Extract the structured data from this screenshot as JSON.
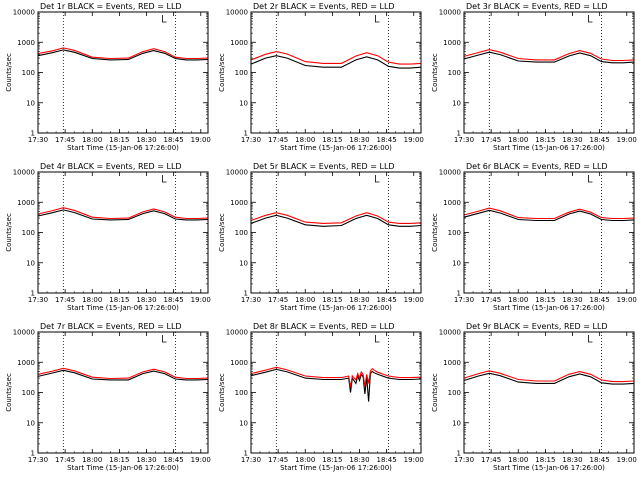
{
  "chart_data": [
    {
      "type": "line",
      "title": "Det 1r BLACK = Events, RED = LLD",
      "xlabel": "Start Time (15-Jan-06 17:26:00)",
      "ylabel": "Counts/sec",
      "x_ticks": [
        "17:30",
        "17:45",
        "18:00",
        "18:15",
        "18:30",
        "18:45",
        "19:00"
      ],
      "x_range_min": [
        1650,
        1744
      ],
      "y_ticks": [
        "1",
        "10",
        "100",
        "1000",
        "10000"
      ],
      "y_range": [
        1,
        10000
      ],
      "y_scale": "log",
      "vlines_min": [
        1664,
        1726
      ],
      "colors": {
        "events": "#000000",
        "lld": "#ff0000"
      },
      "series": [
        {
          "name": "BLACK = Events",
          "color": "#000000",
          "x_min": [
            1650,
            1658,
            1664,
            1670,
            1680,
            1690,
            1700,
            1708,
            1714,
            1720,
            1726,
            1732,
            1738,
            1744
          ],
          "y": [
            360,
            450,
            560,
            470,
            290,
            260,
            270,
            430,
            530,
            430,
            290,
            260,
            260,
            270
          ]
        },
        {
          "name": "RED = LLD",
          "color": "#ff0000",
          "x_min": [
            1650,
            1658,
            1664,
            1670,
            1680,
            1690,
            1700,
            1708,
            1714,
            1720,
            1726,
            1732,
            1738,
            1744
          ],
          "y": [
            420,
            520,
            650,
            540,
            320,
            290,
            300,
            490,
            610,
            490,
            320,
            290,
            290,
            300
          ]
        }
      ]
    },
    {
      "type": "line",
      "title": "Det 2r BLACK = Events, RED = LLD",
      "xlabel": "Start Time (15-Jan-06 17:26:00)",
      "ylabel": "Counts/sec",
      "x_ticks": [
        "17:30",
        "17:45",
        "18:00",
        "18:15",
        "18:30",
        "18:45",
        "19:00"
      ],
      "x_range_min": [
        1650,
        1744
      ],
      "y_ticks": [
        "1",
        "10",
        "100",
        "1000",
        "10000"
      ],
      "y_range": [
        1,
        10000
      ],
      "y_scale": "log",
      "vlines_min": [
        1664,
        1726
      ],
      "colors": {
        "events": "#000000",
        "lld": "#ff0000"
      },
      "series": [
        {
          "name": "BLACK = Events",
          "color": "#000000",
          "x_min": [
            1650,
            1658,
            1664,
            1670,
            1680,
            1690,
            1700,
            1708,
            1714,
            1720,
            1726,
            1732,
            1738,
            1744
          ],
          "y": [
            190,
            300,
            360,
            300,
            170,
            150,
            150,
            260,
            330,
            260,
            160,
            140,
            140,
            150
          ]
        },
        {
          "name": "RED = LLD",
          "color": "#ff0000",
          "x_min": [
            1650,
            1658,
            1664,
            1670,
            1680,
            1690,
            1700,
            1708,
            1714,
            1720,
            1726,
            1732,
            1738,
            1744
          ],
          "y": [
            260,
            400,
            490,
            410,
            230,
            200,
            200,
            350,
            450,
            360,
            220,
            190,
            190,
            200
          ]
        }
      ]
    },
    {
      "type": "line",
      "title": "Det 3r BLACK = Events, RED = LLD",
      "xlabel": "Start Time (15-Jan-06 17:26:00)",
      "ylabel": "Counts/sec",
      "x_ticks": [
        "17:30",
        "17:45",
        "18:00",
        "18:15",
        "18:30",
        "18:45",
        "19:00"
      ],
      "x_range_min": [
        1650,
        1744
      ],
      "y_ticks": [
        "1",
        "10",
        "100",
        "1000",
        "10000"
      ],
      "y_range": [
        1,
        10000
      ],
      "y_scale": "log",
      "vlines_min": [
        1664,
        1726
      ],
      "colors": {
        "events": "#000000",
        "lld": "#ff0000"
      },
      "series": [
        {
          "name": "BLACK = Events",
          "color": "#000000",
          "x_min": [
            1650,
            1658,
            1664,
            1670,
            1680,
            1690,
            1700,
            1708,
            1714,
            1720,
            1726,
            1732,
            1738,
            1744
          ],
          "y": [
            280,
            380,
            470,
            390,
            240,
            220,
            220,
            350,
            440,
            360,
            230,
            210,
            210,
            220
          ]
        },
        {
          "name": "RED = LLD",
          "color": "#ff0000",
          "x_min": [
            1650,
            1658,
            1664,
            1670,
            1680,
            1690,
            1700,
            1708,
            1714,
            1720,
            1726,
            1732,
            1738,
            1744
          ],
          "y": [
            340,
            460,
            570,
            470,
            290,
            260,
            260,
            420,
            530,
            430,
            280,
            250,
            250,
            260
          ]
        }
      ]
    },
    {
      "type": "line",
      "title": "Det 4r BLACK = Events, RED = LLD",
      "xlabel": "Start Time (15-Jan-06 17:26:00)",
      "ylabel": "Counts/sec",
      "x_ticks": [
        "17:30",
        "17:45",
        "18:00",
        "18:15",
        "18:30",
        "18:45",
        "19:00"
      ],
      "x_range_min": [
        1650,
        1744
      ],
      "y_ticks": [
        "1",
        "10",
        "100",
        "1000",
        "10000"
      ],
      "y_range": [
        1,
        10000
      ],
      "y_scale": "log",
      "vlines_min": [
        1664,
        1726
      ],
      "colors": {
        "events": "#000000",
        "lld": "#ff0000"
      },
      "series": [
        {
          "name": "BLACK = Events",
          "color": "#000000",
          "x_min": [
            1650,
            1658,
            1664,
            1670,
            1680,
            1690,
            1700,
            1708,
            1714,
            1720,
            1726,
            1732,
            1738,
            1744
          ],
          "y": [
            350,
            450,
            560,
            460,
            280,
            260,
            270,
            420,
            520,
            420,
            280,
            260,
            260,
            270
          ]
        },
        {
          "name": "RED = LLD",
          "color": "#ff0000",
          "x_min": [
            1650,
            1658,
            1664,
            1670,
            1680,
            1690,
            1700,
            1708,
            1714,
            1720,
            1726,
            1732,
            1738,
            1744
          ],
          "y": [
            410,
            530,
            660,
            540,
            320,
            290,
            300,
            480,
            600,
            480,
            320,
            290,
            290,
            300
          ]
        }
      ]
    },
    {
      "type": "line",
      "title": "Det 5r BLACK = Events, RED = LLD",
      "xlabel": "Start Time (15-Jan-06 17:26:00)",
      "ylabel": "Counts/sec",
      "x_ticks": [
        "17:30",
        "17:45",
        "18:00",
        "18:15",
        "18:30",
        "18:45",
        "19:00"
      ],
      "x_range_min": [
        1650,
        1744
      ],
      "y_ticks": [
        "1",
        "10",
        "100",
        "1000",
        "10000"
      ],
      "y_range": [
        1,
        10000
      ],
      "y_scale": "log",
      "vlines_min": [
        1664,
        1726
      ],
      "colors": {
        "events": "#000000",
        "lld": "#ff0000"
      },
      "series": [
        {
          "name": "BLACK = Events",
          "color": "#000000",
          "x_min": [
            1650,
            1658,
            1664,
            1670,
            1680,
            1690,
            1700,
            1708,
            1714,
            1720,
            1726,
            1732,
            1738,
            1744
          ],
          "y": [
            200,
            300,
            370,
            300,
            180,
            160,
            170,
            290,
            370,
            290,
            180,
            160,
            160,
            170
          ]
        },
        {
          "name": "RED = LLD",
          "color": "#ff0000",
          "x_min": [
            1650,
            1658,
            1664,
            1670,
            1680,
            1690,
            1700,
            1708,
            1714,
            1720,
            1726,
            1732,
            1738,
            1744
          ],
          "y": [
            250,
            370,
            450,
            370,
            220,
            200,
            210,
            350,
            450,
            350,
            220,
            200,
            200,
            210
          ]
        }
      ]
    },
    {
      "type": "line",
      "title": "Det 6r BLACK = Events, RED = LLD",
      "xlabel": "Start Time (15-Jan-06 17:26:00)",
      "ylabel": "Counts/sec",
      "x_ticks": [
        "17:30",
        "17:45",
        "18:00",
        "18:15",
        "18:30",
        "18:45",
        "19:00"
      ],
      "x_range_min": [
        1650,
        1744
      ],
      "y_ticks": [
        "1",
        "10",
        "100",
        "1000",
        "10000"
      ],
      "y_range": [
        1,
        10000
      ],
      "y_scale": "log",
      "vlines_min": [
        1664,
        1726
      ],
      "colors": {
        "events": "#000000",
        "lld": "#ff0000"
      },
      "series": [
        {
          "name": "BLACK = Events",
          "color": "#000000",
          "x_min": [
            1650,
            1658,
            1664,
            1670,
            1680,
            1690,
            1700,
            1708,
            1714,
            1720,
            1726,
            1732,
            1738,
            1744
          ],
          "y": [
            320,
            430,
            540,
            440,
            270,
            250,
            250,
            410,
            510,
            410,
            270,
            250,
            250,
            260
          ]
        },
        {
          "name": "RED = LLD",
          "color": "#ff0000",
          "x_min": [
            1650,
            1658,
            1664,
            1670,
            1680,
            1690,
            1700,
            1708,
            1714,
            1720,
            1726,
            1732,
            1738,
            1744
          ],
          "y": [
            380,
            510,
            640,
            520,
            310,
            290,
            290,
            470,
            590,
            470,
            310,
            290,
            290,
            300
          ]
        }
      ]
    },
    {
      "type": "line",
      "title": "Det 7r BLACK = Events, RED = LLD",
      "xlabel": "Start Time (15-Jan-06 17:26:00)",
      "ylabel": "Counts/sec",
      "x_ticks": [
        "17:30",
        "17:45",
        "18:00",
        "18:15",
        "18:30",
        "18:45",
        "19:00"
      ],
      "x_range_min": [
        1650,
        1744
      ],
      "y_ticks": [
        "1",
        "10",
        "100",
        "1000",
        "10000"
      ],
      "y_range": [
        1,
        10000
      ],
      "y_scale": "log",
      "vlines_min": [
        1664,
        1726
      ],
      "colors": {
        "events": "#000000",
        "lld": "#ff0000"
      },
      "series": [
        {
          "name": "BLACK = Events",
          "color": "#000000",
          "x_min": [
            1650,
            1658,
            1664,
            1670,
            1680,
            1690,
            1700,
            1708,
            1714,
            1720,
            1726,
            1732,
            1738,
            1744
          ],
          "y": [
            340,
            440,
            540,
            450,
            280,
            260,
            260,
            420,
            510,
            420,
            280,
            260,
            260,
            270
          ]
        },
        {
          "name": "RED = LLD",
          "color": "#ff0000",
          "x_min": [
            1650,
            1658,
            1664,
            1670,
            1680,
            1690,
            1700,
            1708,
            1714,
            1720,
            1726,
            1732,
            1738,
            1744
          ],
          "y": [
            400,
            510,
            630,
            520,
            320,
            290,
            300,
            480,
            590,
            480,
            320,
            290,
            290,
            300
          ]
        }
      ]
    },
    {
      "type": "line",
      "title": "Det 8r BLACK = Events, RED = LLD",
      "xlabel": "Start Time (15-Jan-06 17:26:00)",
      "ylabel": "Counts/sec",
      "x_ticks": [
        "17:30",
        "17:45",
        "18:00",
        "18:15",
        "18:30",
        "18:45",
        "19:00"
      ],
      "x_range_min": [
        1650,
        1744
      ],
      "y_ticks": [
        "1",
        "10",
        "100",
        "1000",
        "10000"
      ],
      "y_range": [
        1,
        10000
      ],
      "y_scale": "log",
      "vlines_min": [
        1664,
        1726
      ],
      "colors": {
        "events": "#000000",
        "lld": "#ff0000"
      },
      "series": [
        {
          "name": "BLACK = Events",
          "color": "#000000",
          "x_min": [
            1650,
            1658,
            1664,
            1670,
            1680,
            1690,
            1700,
            1704,
            1705,
            1706,
            1708,
            1709,
            1710,
            1711,
            1712,
            1713,
            1714,
            1715,
            1716,
            1717,
            1718,
            1720,
            1726,
            1732,
            1738,
            1744
          ],
          "y": [
            360,
            470,
            580,
            480,
            300,
            270,
            270,
            300,
            100,
            300,
            200,
            350,
            250,
            400,
            330,
            90,
            330,
            50,
            420,
            500,
            450,
            400,
            300,
            270,
            270,
            280
          ]
        },
        {
          "name": "RED = LLD",
          "color": "#ff0000",
          "x_min": [
            1650,
            1658,
            1664,
            1670,
            1680,
            1690,
            1700,
            1704,
            1705,
            1706,
            1708,
            1709,
            1710,
            1711,
            1712,
            1713,
            1714,
            1715,
            1716,
            1717,
            1718,
            1720,
            1726,
            1732,
            1738,
            1744
          ],
          "y": [
            420,
            550,
            680,
            560,
            350,
            310,
            310,
            350,
            150,
            350,
            260,
            420,
            300,
            480,
            400,
            160,
            400,
            200,
            520,
            610,
            550,
            470,
            350,
            310,
            310,
            320
          ]
        }
      ]
    },
    {
      "type": "line",
      "title": "Det 9r BLACK = Events, RED = LLD",
      "xlabel": "Start Time (15-Jan-06 17:26:00)",
      "ylabel": "Counts/sec",
      "x_ticks": [
        "17:30",
        "17:45",
        "18:00",
        "18:15",
        "18:30",
        "18:45",
        "19:00"
      ],
      "x_range_min": [
        1650,
        1744
      ],
      "y_ticks": [
        "1",
        "10",
        "100",
        "1000",
        "10000"
      ],
      "y_range": [
        1,
        10000
      ],
      "y_scale": "log",
      "vlines_min": [
        1664,
        1726
      ],
      "colors": {
        "events": "#000000",
        "lld": "#ff0000"
      },
      "series": [
        {
          "name": "BLACK = Events",
          "color": "#000000",
          "x_min": [
            1650,
            1658,
            1664,
            1670,
            1680,
            1690,
            1700,
            1708,
            1714,
            1720,
            1726,
            1732,
            1738,
            1744
          ],
          "y": [
            250,
            350,
            430,
            360,
            220,
            200,
            200,
            330,
            410,
            330,
            210,
            190,
            190,
            200
          ]
        },
        {
          "name": "RED = LLD",
          "color": "#ff0000",
          "x_min": [
            1650,
            1658,
            1664,
            1670,
            1680,
            1690,
            1700,
            1708,
            1714,
            1720,
            1726,
            1732,
            1738,
            1744
          ],
          "y": [
            300,
            420,
            520,
            430,
            270,
            240,
            240,
            400,
            490,
            400,
            260,
            230,
            230,
            240
          ]
        }
      ]
    }
  ]
}
